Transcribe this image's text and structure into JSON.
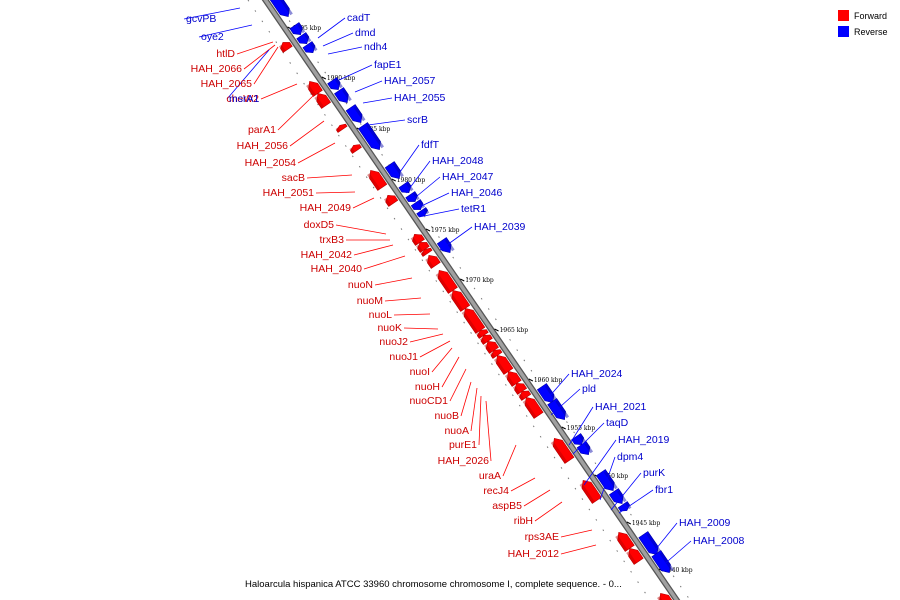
{
  "colors": {
    "forward": "#ff0000",
    "forward_dark": "#b80000",
    "reverse": "#0000ff",
    "reverse_dark": "#0000a8",
    "backbone": "#999999",
    "backbone_edge": "#555555"
  },
  "legend": {
    "forward_label": "Forward",
    "reverse_label": "Reverse"
  },
  "caption": "Haloarcula hispanica ATCC 33960 chromosome chromosome I, complete sequence. - 0...",
  "ticks": [
    "1995 kbp",
    "1990 kbp",
    "1985 kbp",
    "1980 kbp",
    "1975 kbp",
    "1970 kbp",
    "1965 kbp",
    "1960 kbp",
    "1955 kbp",
    "1950 kbp",
    "1945 kbp",
    "1940 kbp"
  ],
  "genes": {
    "forward": [
      "htlD",
      "HAH_2066",
      "HAH_2065",
      "cheW2",
      "parA1",
      "HAH_2056",
      "HAH_2054",
      "sacB",
      "HAH_2051",
      "HAH_2049",
      "doxD5",
      "trxB3",
      "HAH_2042",
      "HAH_2040",
      "nuoN",
      "nuoM",
      "nuoL",
      "nuoK",
      "nuoJ2",
      "nuoJ1",
      "nuoI",
      "nuoH",
      "nuoCD1",
      "nuoB",
      "nuoA",
      "purE1",
      "HAH_2026",
      "uraA",
      "recJ4",
      "aspB5",
      "ribH",
      "rps3AE",
      "HAH_2012"
    ],
    "reverse": [
      "gcvPB",
      "oye2",
      "msrA1",
      "cadT",
      "dmd",
      "ndh4",
      "fapE1",
      "HAH_2057",
      "HAH_2055",
      "scrB",
      "fdfT",
      "HAH_2048",
      "HAH_2047",
      "HAH_2046",
      "tetR1",
      "HAH_2039",
      "HAH_2024",
      "pld",
      "HAH_2021",
      "taqD",
      "HAH_2019",
      "dpm4",
      "purK",
      "fbr1",
      "HAH_2009",
      "HAH_2008"
    ]
  }
}
